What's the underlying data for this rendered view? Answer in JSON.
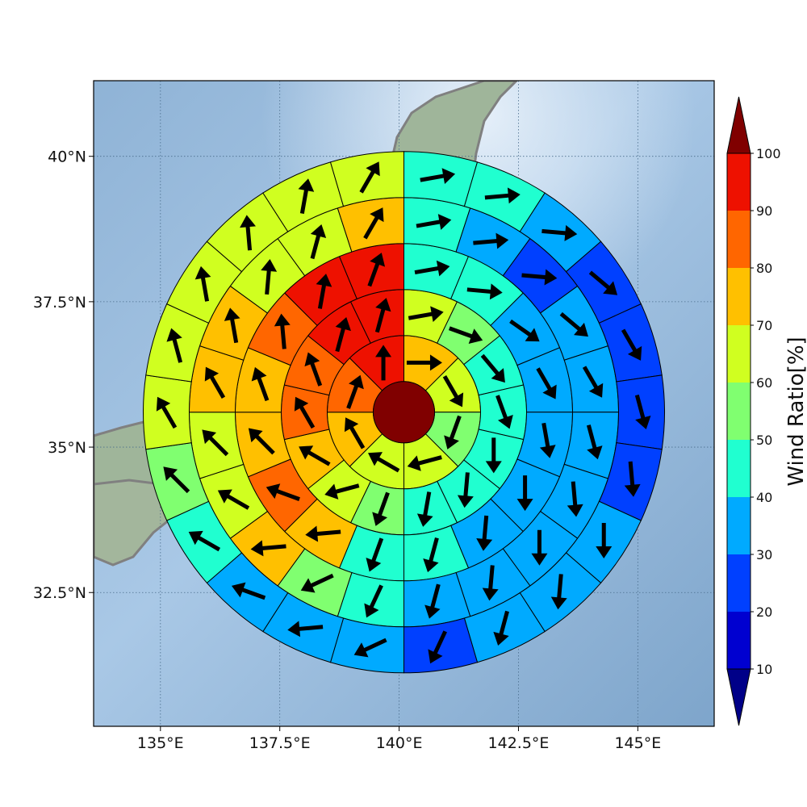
{
  "chart_data": {
    "type": "heatmap",
    "subtype": "polar-sector-map-with-wind-vectors",
    "x_ticks": [
      "135°E",
      "137.5°E",
      "140°E",
      "142.5°E",
      "145°E"
    ],
    "x_tick_values": [
      135,
      137.5,
      140,
      142.5,
      145
    ],
    "y_ticks": [
      "32.5°N",
      "35°N",
      "37.5°N",
      "40°N"
    ],
    "y_tick_values": [
      32.5,
      35,
      37.5,
      40
    ],
    "xlim": [
      133.6,
      146.6
    ],
    "ylim": [
      30.2,
      41.3
    ],
    "center": {
      "lon": 140.1,
      "lat": 35.6
    },
    "grid": true,
    "colorbar": {
      "label": "Wind Ratio[%]",
      "tick_labels": [
        "10",
        "20",
        "30",
        "40",
        "50",
        "60",
        "70",
        "80",
        "90",
        "100"
      ],
      "levels": [
        10,
        20,
        30,
        40,
        50,
        60,
        70,
        80,
        90,
        100
      ],
      "band_colors": [
        "#0000d0",
        "#0040ff",
        "#00aaff",
        "#20ffd0",
        "#80ff70",
        "#d0ff20",
        "#ffc000",
        "#ff6600",
        "#ee1100"
      ],
      "under_color": "#000088",
      "over_color": "#800000"
    },
    "center_value": 100,
    "rings": [
      {
        "ring": 1,
        "values": [
          75,
          65,
          55,
          60,
          60,
          70,
          85,
          90
        ]
      },
      {
        "ring": 2,
        "values": [
          65,
          50,
          45,
          40,
          40,
          45,
          45,
          55,
          60,
          75,
          85,
          85,
          90,
          90
        ]
      },
      {
        "ring": 3,
        "values": [
          45,
          40,
          35,
          35,
          35,
          35,
          35,
          40,
          45,
          75,
          80,
          75,
          75,
          85,
          95,
          95
        ]
      },
      {
        "ring": 4,
        "values": [
          45,
          35,
          25,
          35,
          35,
          35,
          35,
          35,
          35,
          35,
          45,
          55,
          70,
          65,
          65,
          75,
          75,
          65,
          65,
          75
        ]
      },
      {
        "ring": 5,
        "values": [
          45,
          45,
          35,
          25,
          25,
          25,
          25,
          35,
          35,
          35,
          25,
          35,
          35,
          35,
          45,
          55,
          65,
          65,
          65,
          65,
          65,
          65
        ]
      }
    ],
    "wind_direction_deg": {
      "ring1": [
        90,
        150,
        200,
        255,
        300,
        330,
        20,
        0
      ],
      "ring2": [
        80,
        110,
        140,
        160,
        180,
        185,
        190,
        200,
        255,
        300,
        330,
        340,
        15,
        15
      ],
      "ring3": [
        80,
        95,
        125,
        150,
        170,
        180,
        185,
        195,
        200,
        265,
        290,
        315,
        340,
        355,
        10,
        20
      ],
      "ring4": [
        80,
        85,
        95,
        130,
        150,
        165,
        175,
        180,
        185,
        195,
        205,
        245,
        265,
        300,
        315,
        330,
        350,
        5,
        15,
        30
      ],
      "ring5": [
        80,
        85,
        95,
        130,
        150,
        165,
        175,
        180,
        185,
        195,
        205,
        245,
        265,
        290,
        300,
        315,
        330,
        345,
        350,
        355,
        10,
        30
      ]
    }
  }
}
